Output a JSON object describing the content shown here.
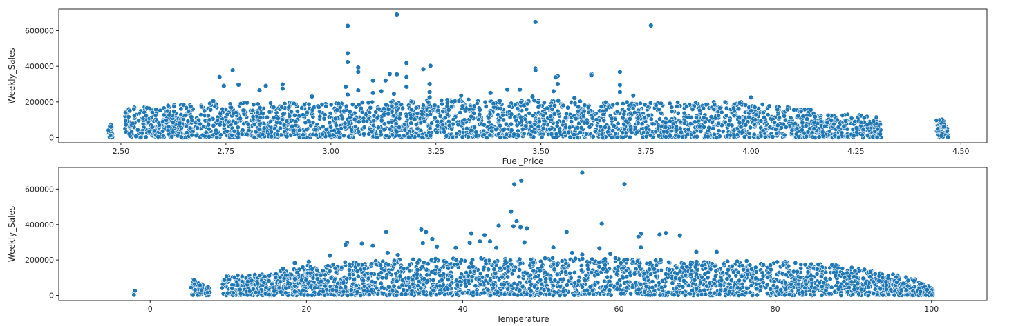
{
  "chart_data": [
    {
      "type": "scatter",
      "name": "fuel-price-scatter",
      "xlabel": "Fuel_Price",
      "ylabel": "Weekly_Sales",
      "xlim": [
        2.352,
        4.562
      ],
      "ylim": [
        -29000,
        722000
      ],
      "xticks": [
        2.5,
        2.75,
        3.0,
        3.25,
        3.5,
        3.75,
        4.0,
        4.25,
        4.5
      ],
      "xtick_labels": [
        "2.50",
        "2.75",
        "3.00",
        "3.25",
        "3.50",
        "3.75",
        "4.00",
        "4.25",
        "4.50"
      ],
      "yticks": [
        0,
        200000,
        400000,
        600000
      ],
      "ytick_labels": [
        "0",
        "200000",
        "400000",
        "600000"
      ],
      "color": "#1f77b4",
      "dense_band": {
        "x_range": [
          2.47,
          4.47
        ],
        "gaps": [
          [
            2.48,
            2.51
          ],
          [
            4.31,
            4.44
          ]
        ],
        "ymax_profile": [
          [
            2.47,
            65000
          ],
          [
            2.52,
            170000
          ],
          [
            2.75,
            200000
          ],
          [
            3.0,
            195000
          ],
          [
            3.25,
            215000
          ],
          [
            3.5,
            210000
          ],
          [
            3.75,
            200000
          ],
          [
            4.0,
            200000
          ],
          [
            4.2,
            140000
          ],
          [
            4.31,
            120000
          ],
          [
            4.45,
            105000
          ],
          [
            4.47,
            100000
          ]
        ],
        "point_count": 2600
      },
      "points": [
        {
          "x": 3.157,
          "y": 691000
        },
        {
          "x": 3.487,
          "y": 649000
        },
        {
          "x": 3.762,
          "y": 629000
        },
        {
          "x": 3.04,
          "y": 627000
        },
        {
          "x": 3.04,
          "y": 473000
        },
        {
          "x": 3.04,
          "y": 424000
        },
        {
          "x": 3.18,
          "y": 418000
        },
        {
          "x": 3.237,
          "y": 403000
        },
        {
          "x": 3.22,
          "y": 384000
        },
        {
          "x": 3.065,
          "y": 393000
        },
        {
          "x": 3.065,
          "y": 368000
        },
        {
          "x": 3.487,
          "y": 388000
        },
        {
          "x": 3.487,
          "y": 378000
        },
        {
          "x": 2.766,
          "y": 378000
        },
        {
          "x": 3.688,
          "y": 368000
        },
        {
          "x": 3.62,
          "y": 358000
        },
        {
          "x": 3.62,
          "y": 350000
        },
        {
          "x": 3.54,
          "y": 345000
        },
        {
          "x": 3.535,
          "y": 338000
        },
        {
          "x": 3.14,
          "y": 357000
        },
        {
          "x": 3.157,
          "y": 355000
        },
        {
          "x": 3.18,
          "y": 340000
        },
        {
          "x": 2.735,
          "y": 340000
        },
        {
          "x": 3.13,
          "y": 320000
        },
        {
          "x": 3.1,
          "y": 320000
        },
        {
          "x": 3.54,
          "y": 300000
        },
        {
          "x": 2.885,
          "y": 298000
        },
        {
          "x": 3.235,
          "y": 300000
        },
        {
          "x": 2.745,
          "y": 290000
        },
        {
          "x": 2.845,
          "y": 290000
        },
        {
          "x": 2.78,
          "y": 296000
        },
        {
          "x": 3.688,
          "y": 295000
        },
        {
          "x": 3.035,
          "y": 285000
        },
        {
          "x": 3.18,
          "y": 285000
        },
        {
          "x": 2.885,
          "y": 275000
        },
        {
          "x": 3.45,
          "y": 270000
        },
        {
          "x": 2.83,
          "y": 265000
        },
        {
          "x": 3.42,
          "y": 270000
        },
        {
          "x": 3.065,
          "y": 265000
        },
        {
          "x": 3.53,
          "y": 260000
        },
        {
          "x": 3.12,
          "y": 260000
        },
        {
          "x": 3.235,
          "y": 255000
        },
        {
          "x": 3.688,
          "y": 255000
        },
        {
          "x": 3.1,
          "y": 250000
        },
        {
          "x": 3.38,
          "y": 250000
        },
        {
          "x": 3.15,
          "y": 245000
        },
        {
          "x": 3.04,
          "y": 240000
        },
        {
          "x": 3.31,
          "y": 235000
        },
        {
          "x": 3.72,
          "y": 235000
        },
        {
          "x": 3.48,
          "y": 230000
        },
        {
          "x": 3.58,
          "y": 222000
        },
        {
          "x": 4.0,
          "y": 225000
        },
        {
          "x": 2.955,
          "y": 230000
        },
        {
          "x": 3.235,
          "y": 225000
        },
        {
          "x": 2.72,
          "y": 205000
        }
      ]
    },
    {
      "type": "scatter",
      "name": "temperature-scatter",
      "xlabel": "Temperature",
      "ylabel": "Weekly_Sales",
      "xlim": [
        -11.7,
        107.1
      ],
      "ylim": [
        -29000,
        722000
      ],
      "xticks": [
        0,
        20,
        40,
        60,
        80,
        100
      ],
      "xtick_labels": [
        "0",
        "20",
        "40",
        "60",
        "80",
        "100"
      ],
      "yticks": [
        0,
        200000,
        400000,
        600000
      ],
      "ytick_labels": [
        "0",
        "200000",
        "400000",
        "600000"
      ],
      "color": "#1f77b4",
      "dense_band": {
        "x_range": [
          -2.1,
          100.2
        ],
        "gaps": [
          [
            -1.9,
            5.2
          ],
          [
            7.7,
            9.2
          ]
        ],
        "ymax_profile": [
          [
            -2.1,
            55000
          ],
          [
            5.3,
            95000
          ],
          [
            7.6,
            45000
          ],
          [
            9.3,
            110000
          ],
          [
            15,
            120000
          ],
          [
            20,
            170000
          ],
          [
            25,
            190000
          ],
          [
            30,
            200000
          ],
          [
            35,
            205000
          ],
          [
            40,
            210000
          ],
          [
            45,
            215000
          ],
          [
            50,
            210000
          ],
          [
            55,
            215000
          ],
          [
            60,
            210000
          ],
          [
            65,
            200000
          ],
          [
            70,
            190000
          ],
          [
            75,
            195000
          ],
          [
            80,
            195000
          ],
          [
            85,
            180000
          ],
          [
            90,
            165000
          ],
          [
            95,
            120000
          ],
          [
            98,
            90000
          ],
          [
            100.2,
            40000
          ]
        ],
        "point_count": 2600
      },
      "points": [
        {
          "x": 55.3,
          "y": 693000
        },
        {
          "x": 47.5,
          "y": 649000
        },
        {
          "x": 60.7,
          "y": 628000
        },
        {
          "x": 46.6,
          "y": 627000
        },
        {
          "x": 46.2,
          "y": 474000
        },
        {
          "x": 46.9,
          "y": 419000
        },
        {
          "x": 57.8,
          "y": 405000
        },
        {
          "x": 46.5,
          "y": 390000
        },
        {
          "x": 44.6,
          "y": 393000
        },
        {
          "x": 47.4,
          "y": 385000
        },
        {
          "x": 48.2,
          "y": 378000
        },
        {
          "x": 34.7,
          "y": 372000
        },
        {
          "x": 30.2,
          "y": 358000
        },
        {
          "x": 35.3,
          "y": 358000
        },
        {
          "x": 53.3,
          "y": 358000
        },
        {
          "x": 41.1,
          "y": 350000
        },
        {
          "x": 66.0,
          "y": 352000
        },
        {
          "x": 62.8,
          "y": 348000
        },
        {
          "x": 42.8,
          "y": 340000
        },
        {
          "x": 65.2,
          "y": 343000
        },
        {
          "x": 67.8,
          "y": 338000
        },
        {
          "x": 62.5,
          "y": 330000
        },
        {
          "x": 36.1,
          "y": 318000
        },
        {
          "x": 43.5,
          "y": 305000
        },
        {
          "x": 40.9,
          "y": 297000
        },
        {
          "x": 42.2,
          "y": 305000
        },
        {
          "x": 25.2,
          "y": 298000
        },
        {
          "x": 27.1,
          "y": 292000
        },
        {
          "x": 25.0,
          "y": 285000
        },
        {
          "x": 34.9,
          "y": 295000
        },
        {
          "x": 47.9,
          "y": 300000
        },
        {
          "x": 36.7,
          "y": 275000
        },
        {
          "x": 44.3,
          "y": 268000
        },
        {
          "x": 28.5,
          "y": 280000
        },
        {
          "x": 62.8,
          "y": 270000
        },
        {
          "x": 57.5,
          "y": 265000
        },
        {
          "x": 51.6,
          "y": 270000
        },
        {
          "x": 39.1,
          "y": 268000
        },
        {
          "x": 69.9,
          "y": 245000
        },
        {
          "x": 72.5,
          "y": 245000
        },
        {
          "x": 30.4,
          "y": 240000
        },
        {
          "x": 23.0,
          "y": 225000
        },
        {
          "x": 31.7,
          "y": 228000
        },
        {
          "x": 55.3,
          "y": 230000
        },
        {
          "x": 18.5,
          "y": 183000
        },
        {
          "x": 17.0,
          "y": 150000
        },
        {
          "x": 20.3,
          "y": 190000
        },
        {
          "x": 54.0,
          "y": 240000
        },
        {
          "x": 58.9,
          "y": 235000
        }
      ]
    }
  ]
}
